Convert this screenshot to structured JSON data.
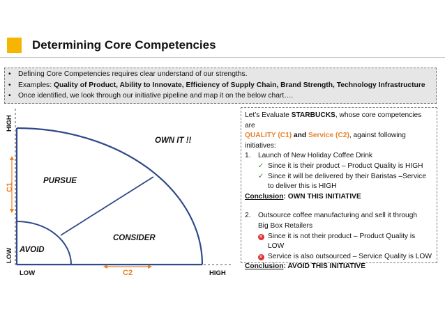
{
  "header": {
    "title": "Determining Core Competencies",
    "accent_color": "#f7b400"
  },
  "bullets": {
    "items": [
      {
        "text": "Defining Core Competencies requires clear understand of our strengths."
      },
      {
        "prefix": "Examples: ",
        "bold": "Quality of Product, Ability to Innovate, Efficiency of Supply Chain, Brand Strength, Technology Infrastructure"
      },
      {
        "text": "Once identified, we look through our initiative pipeline and map it on the below chart…."
      }
    ]
  },
  "chart": {
    "y_high": "HIGH",
    "y_low": "LOW",
    "y_axis": "C1",
    "x_low": "LOW",
    "x_high": "HIGH",
    "x_axis": "C2",
    "regions": {
      "own": "OWN IT !!",
      "pursue": "PURSUE",
      "consider": "CONSIDER",
      "avoid": "AVOID"
    },
    "colors": {
      "lines": "#2f4a8a",
      "axis_accent": "#e8822a"
    }
  },
  "panel": {
    "intro_1": "Let’s Evaluate ",
    "intro_company": "STARBUCKS",
    "intro_2": ", whose core competencies are",
    "c1": "QUALITY (C1)",
    "and": " and ",
    "c2": "Service (C2)",
    "intro_3": ", against following",
    "intro_4": "initiatives:",
    "item1_num": "1.",
    "item1_title": "Launch of New Holiday Coffee Drink",
    "item1_reason1": "Since it is their product – Product Quality is HIGH",
    "item1_reason2a": "Since it will be delivered by their Baristas –Service",
    "item1_reason2b": "to deliver this is HIGH",
    "conclusion_label": "Conclusion",
    "conclusion1": ": OWN THIS INITIATIVE",
    "item2_num": "2.",
    "item2_title_a": "Outsource coffee manufacturing and sell it through",
    "item2_title_b": "Big Box Retailers",
    "item2_reason1a": "Since it is not their product – Product Quality is",
    "item2_reason1b": "LOW",
    "item2_reason2": "Service is also outsourced – Service Quality is LOW",
    "conclusion2": ": AVOID THIS INITIATIVE",
    "check_icon": "✓",
    "cross_icon": "✕"
  }
}
